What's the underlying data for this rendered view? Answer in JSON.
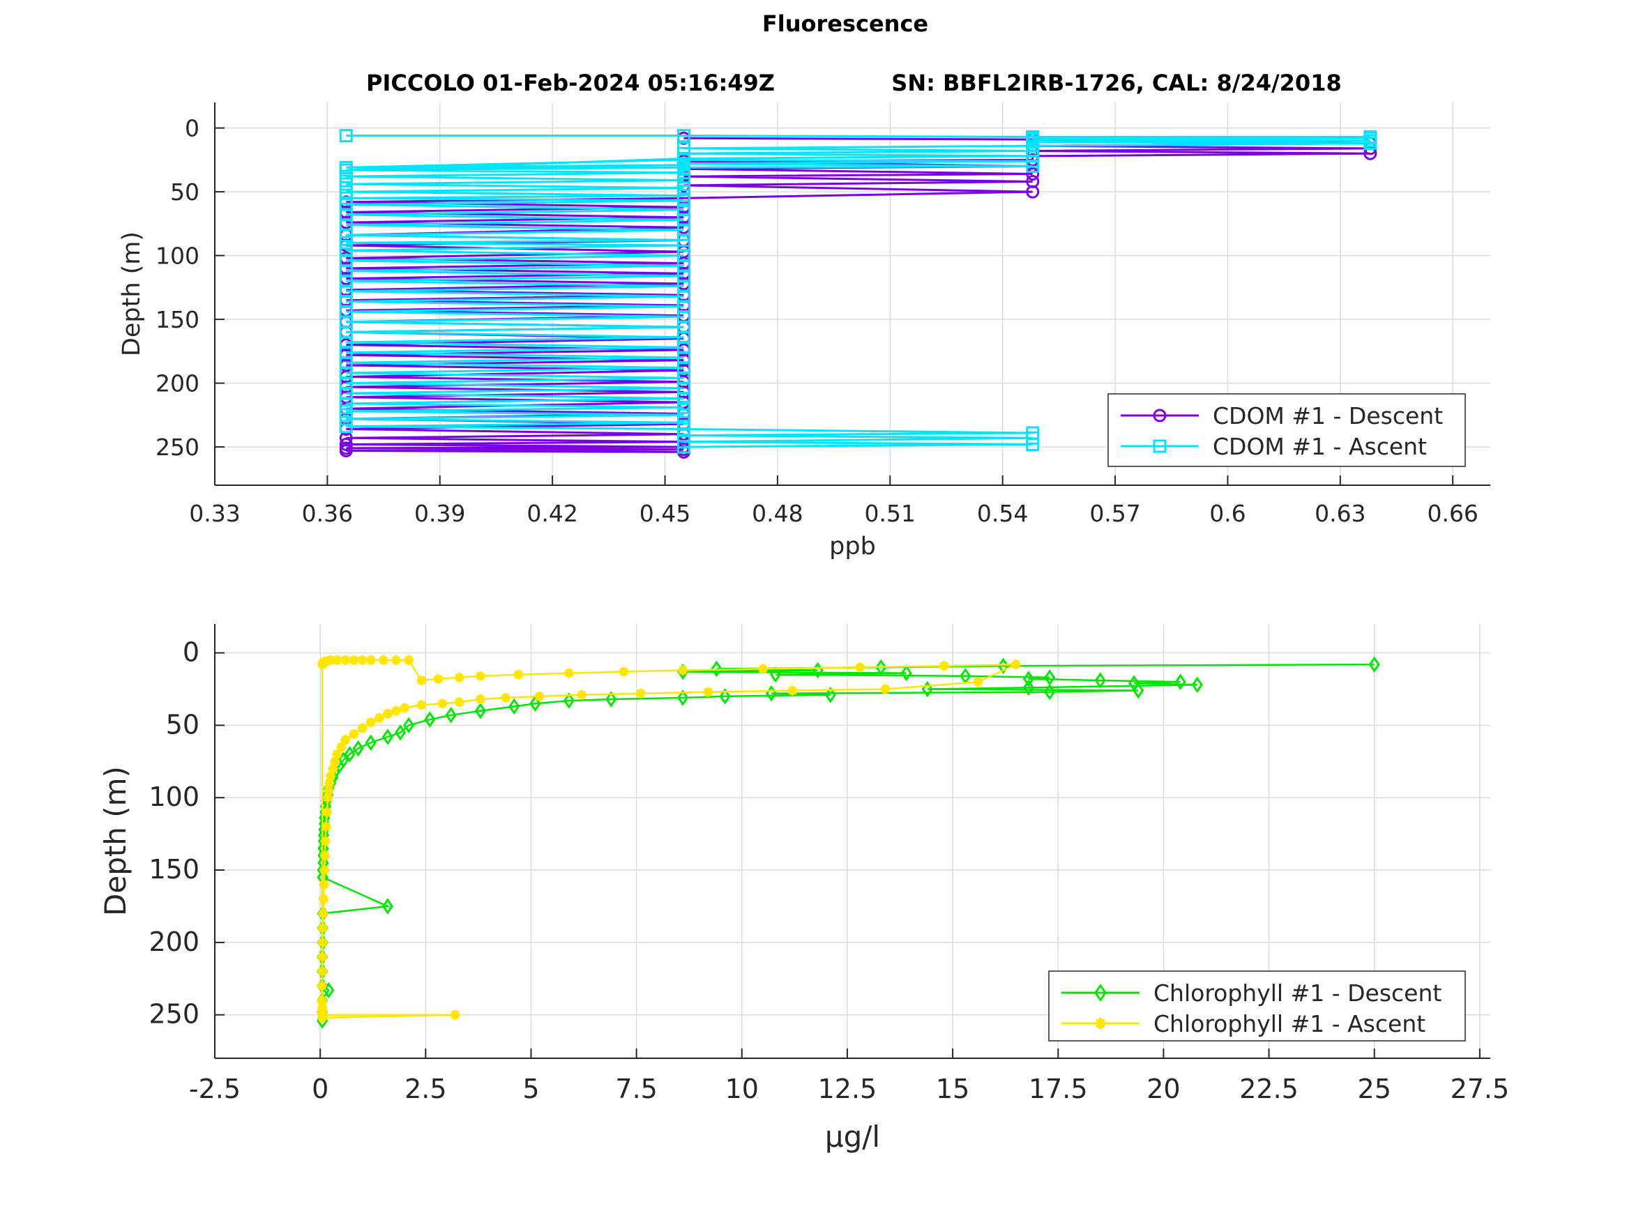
{
  "figure": {
    "title": "Fluorescence",
    "subtitle_left": "PICCOLO 01-Feb-2024 05:16:49Z",
    "subtitle_right": "SN: BBFL2IRB-1726, CAL: 8/24/2018"
  },
  "chart_data": [
    {
      "type": "line",
      "xlabel": "ppb",
      "ylabel": "Depth (m)",
      "xlim": [
        0.33,
        0.67
      ],
      "ylim": [
        -20,
        280
      ],
      "y_reversed": true,
      "xticks": [
        "0.33",
        "0.36",
        "0.39",
        "0.42",
        "0.45",
        "0.48",
        "0.51",
        "0.54",
        "0.57",
        "0.6",
        "0.63",
        "0.66"
      ],
      "yticks": [
        "0",
        "50",
        "100",
        "150",
        "200",
        "250"
      ],
      "grid": true,
      "legend_location": "bottom-right",
      "series": [
        {
          "name": "CDOM #1 - Descent",
          "color": "#7b00e6",
          "marker": "circle",
          "levels": [
            0.365,
            0.455,
            0.548,
            0.638
          ],
          "x": [
            0.455,
            0.548,
            0.638,
            0.548,
            0.638,
            0.548,
            0.638,
            0.548,
            0.548,
            0.455,
            0.548,
            0.455,
            0.548,
            0.455,
            0.548,
            0.455,
            0.548,
            0.455,
            0.365,
            0.455,
            0.365,
            0.455,
            0.365,
            0.455,
            0.365,
            0.455,
            0.365,
            0.455,
            0.365,
            0.455,
            0.365,
            0.455,
            0.365,
            0.455,
            0.365,
            0.455,
            0.365,
            0.455,
            0.365,
            0.455,
            0.365,
            0.455,
            0.365,
            0.455,
            0.365,
            0.455,
            0.365,
            0.455,
            0.365,
            0.455,
            0.365,
            0.455,
            0.365,
            0.455,
            0.365,
            0.455,
            0.365,
            0.455,
            0.365,
            0.455,
            0.365,
            0.455,
            0.365,
            0.455,
            0.365,
            0.455,
            0.365,
            0.455,
            0.365,
            0.455
          ],
          "depth": [
            8,
            9,
            12,
            14,
            16,
            18,
            20,
            22,
            25,
            26,
            30,
            32,
            36,
            38,
            42,
            45,
            50,
            55,
            58,
            62,
            66,
            70,
            74,
            78,
            84,
            88,
            92,
            97,
            102,
            106,
            110,
            114,
            118,
            122,
            127,
            131,
            135,
            139,
            143,
            147,
            152,
            156,
            160,
            165,
            170,
            174,
            178,
            182,
            186,
            190,
            195,
            199,
            203,
            207,
            211,
            215,
            220,
            224,
            228,
            232,
            236,
            240,
            243,
            246,
            248,
            250,
            251,
            252,
            253,
            254
          ]
        },
        {
          "name": "CDOM #1 - Ascent",
          "color": "#00e5ff",
          "marker": "square",
          "levels": [
            0.365,
            0.455,
            0.548,
            0.638
          ],
          "x": [
            0.455,
            0.548,
            0.455,
            0.548,
            0.455,
            0.548,
            0.455,
            0.365,
            0.455,
            0.365,
            0.455,
            0.365,
            0.455,
            0.365,
            0.455,
            0.365,
            0.455,
            0.365,
            0.455,
            0.365,
            0.455,
            0.365,
            0.455,
            0.365,
            0.455,
            0.365,
            0.455,
            0.365,
            0.455,
            0.365,
            0.455,
            0.365,
            0.455,
            0.365,
            0.455,
            0.365,
            0.455,
            0.365,
            0.455,
            0.365,
            0.455,
            0.365,
            0.455,
            0.365,
            0.455,
            0.365,
            0.455,
            0.365,
            0.455,
            0.365,
            0.455,
            0.365,
            0.455,
            0.365,
            0.455,
            0.365,
            0.455,
            0.365,
            0.455,
            0.365,
            0.455,
            0.365,
            0.455,
            0.365,
            0.455,
            0.548,
            0.455,
            0.548,
            0.455,
            0.365,
            0.455,
            0.365,
            0.455,
            0.548,
            0.455,
            0.548,
            0.455,
            0.548,
            0.638,
            0.548,
            0.638,
            0.548,
            0.638,
            0.548,
            0.638,
            0.548,
            0.455,
            0.365
          ],
          "depth": [
            250,
            248,
            246,
            243,
            241,
            239,
            236,
            234,
            231,
            228,
            225,
            222,
            219,
            216,
            212,
            208,
            204,
            200,
            196,
            192,
            188,
            184,
            180,
            176,
            172,
            168,
            164,
            160,
            156,
            152,
            148,
            144,
            140,
            136,
            132,
            128,
            124,
            120,
            116,
            112,
            108,
            104,
            100,
            96,
            92,
            90,
            88,
            84,
            80,
            76,
            72,
            68,
            64,
            60,
            57,
            55,
            53,
            50,
            47,
            44,
            41,
            38,
            35,
            33,
            31,
            30,
            28,
            26,
            25,
            31,
            29,
            33,
            24,
            22,
            20,
            18,
            16,
            14,
            12,
            11,
            10,
            9,
            8,
            8,
            7,
            7,
            6,
            6
          ]
        }
      ]
    },
    {
      "type": "line",
      "xlabel": "μg/l",
      "ylabel": "Depth (m)",
      "xlim": [
        -2.5,
        27.75
      ],
      "ylim": [
        -20,
        280
      ],
      "y_reversed": true,
      "xticks": [
        "-2.5",
        "0",
        "2.5",
        "5",
        "7.5",
        "10",
        "12.5",
        "15",
        "17.5",
        "20",
        "22.5",
        "25",
        "27.5"
      ],
      "yticks": [
        "0",
        "50",
        "100",
        "150",
        "200",
        "250"
      ],
      "grid": true,
      "legend_location": "bottom-right",
      "series": [
        {
          "name": "Chlorophyll #1 - Descent",
          "color": "#00e600",
          "marker": "diamond",
          "x": [
            25.0,
            16.2,
            13.3,
            9.4,
            11.8,
            8.6,
            13.9,
            10.8,
            15.3,
            17.3,
            16.8,
            18.5,
            20.4,
            19.3,
            20.8,
            16.8,
            14.4,
            19.4,
            17.3,
            10.7,
            12.1,
            9.6,
            8.6,
            6.9,
            5.9,
            5.1,
            4.6,
            3.8,
            3.1,
            2.6,
            2.1,
            1.9,
            1.6,
            1.2,
            0.9,
            0.7,
            0.55,
            0.45,
            0.35,
            0.3,
            0.25,
            0.2,
            0.18,
            0.15,
            0.13,
            0.12,
            0.1,
            0.1,
            0.09,
            0.08,
            0.08,
            0.07,
            0.07,
            0.07,
            0.06,
            0.06,
            1.6,
            0.06,
            0.06,
            0.06,
            0.05,
            0.05,
            0.05,
            0.2,
            0.05,
            0.05,
            0.05
          ],
          "depth": [
            8,
            9,
            10,
            11,
            12,
            13,
            14,
            15,
            16,
            17,
            18,
            19,
            20,
            21,
            22,
            24,
            25,
            26,
            27,
            28,
            29,
            30,
            31,
            32,
            33,
            35,
            37,
            40,
            43,
            46,
            50,
            55,
            58,
            62,
            66,
            70,
            74,
            78,
            82,
            86,
            90,
            94,
            98,
            102,
            106,
            110,
            114,
            118,
            122,
            126,
            130,
            135,
            140,
            145,
            150,
            155,
            175,
            180,
            190,
            200,
            210,
            220,
            230,
            233,
            240,
            248,
            254
          ]
        },
        {
          "name": "Chlorophyll #1 - Ascent",
          "color": "#ffe600",
          "marker": "asterisk",
          "x": [
            0.04,
            0.04,
            0.05,
            0.05,
            0.06,
            0.06,
            0.07,
            0.08,
            0.09,
            0.1,
            0.11,
            0.12,
            0.14,
            0.16,
            0.18,
            0.2,
            0.22,
            0.25,
            0.3,
            0.35,
            0.4,
            0.5,
            0.6,
            0.8,
            1.0,
            1.2,
            1.4,
            1.6,
            1.8,
            2.0,
            2.4,
            2.9,
            3.3,
            3.8,
            4.4,
            5.2,
            6.2,
            7.6,
            9.2,
            11.2,
            13.4,
            15.6,
            16.5,
            14.8,
            12.8,
            10.5,
            8.6,
            7.2,
            5.9,
            4.7,
            3.8,
            3.3,
            2.8,
            2.4,
            2.1,
            1.8,
            1.5,
            1.2,
            1.0,
            0.8,
            0.6,
            0.4,
            0.25,
            0.15,
            0.1,
            0.08,
            0.06,
            0.05,
            0.05,
            0.05,
            0.05,
            0.05,
            3.2,
            0.05
          ],
          "depth": [
            240,
            230,
            220,
            210,
            200,
            190,
            180,
            170,
            160,
            150,
            140,
            130,
            120,
            110,
            100,
            95,
            90,
            85,
            80,
            75,
            70,
            65,
            60,
            56,
            52,
            48,
            45,
            42,
            40,
            38,
            36,
            35,
            34,
            32,
            31,
            30,
            29,
            28,
            27,
            26,
            25,
            20,
            8,
            9,
            10,
            11,
            12,
            13,
            14,
            15,
            16,
            17,
            18,
            19,
            5,
            5,
            5,
            5,
            5,
            5,
            5,
            5,
            5,
            6,
            6,
            7,
            7,
            8,
            240,
            245,
            248,
            250,
            250,
            252
          ]
        }
      ]
    }
  ]
}
